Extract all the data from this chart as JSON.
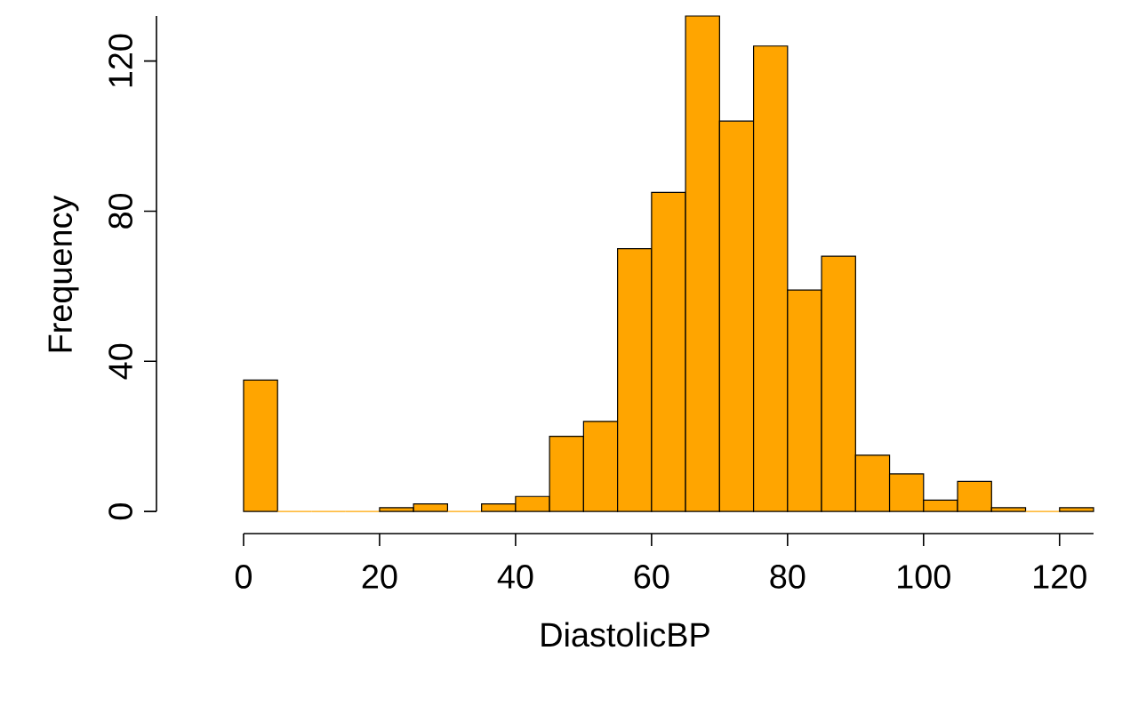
{
  "chart_data": {
    "type": "histogram",
    "xlabel": "DiastolicBP",
    "ylabel": "Frequency",
    "bins": [
      0,
      5,
      10,
      15,
      20,
      25,
      30,
      35,
      40,
      45,
      50,
      55,
      60,
      65,
      70,
      75,
      80,
      85,
      90,
      95,
      100,
      105,
      110,
      115,
      120,
      125
    ],
    "values": [
      35,
      0,
      0,
      0,
      1,
      2,
      0,
      2,
      4,
      20,
      24,
      70,
      85,
      132,
      104,
      124,
      59,
      68,
      15,
      10,
      3,
      8,
      1,
      0,
      1
    ],
    "color": "#ffa500",
    "xlim": [
      0,
      125
    ],
    "ylim": [
      0,
      132
    ],
    "xticks": [
      0,
      20,
      40,
      60,
      80,
      100,
      120
    ],
    "yticks": [
      0,
      40,
      80,
      120
    ]
  }
}
